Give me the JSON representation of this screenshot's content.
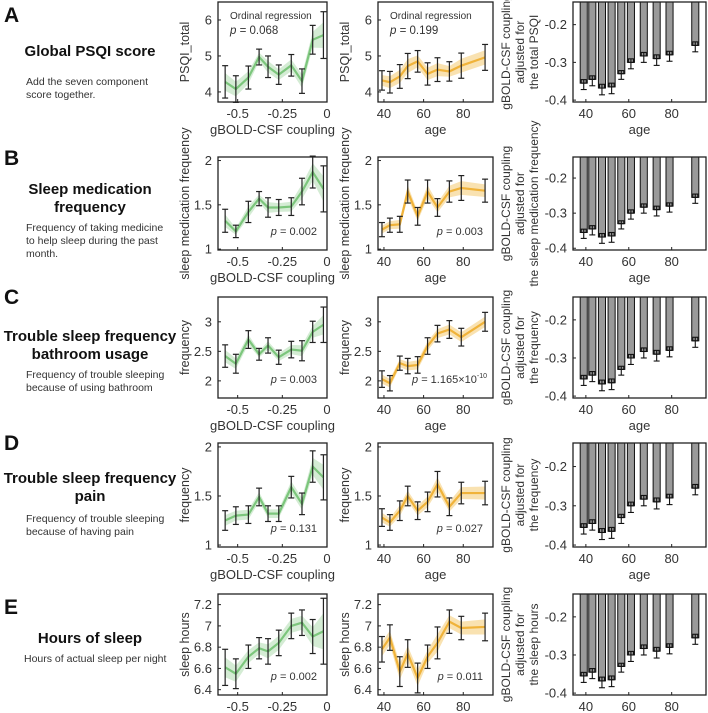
{
  "panels": [
    {
      "letter": "A",
      "title": "Global PSQI score",
      "description": "Add the seven component score together."
    },
    {
      "letter": "B",
      "title": "Sleep medication frequency",
      "description": "Frequency of taking medicine to help sleep during the past month."
    },
    {
      "letter": "C",
      "title": "Trouble sleep frequency bathroom usage",
      "description": "Frequency of trouble sleeping because of using bathroom"
    },
    {
      "letter": "D",
      "title": "Trouble sleep frequency pain",
      "description": "Frequency of trouble sleeping because of having pain"
    },
    {
      "letter": "E",
      "title": "Hours of sleep",
      "description": "Hours of actual sleep per night"
    }
  ],
  "colors": {
    "green": "#7cc67c",
    "green_band": "#cde9cd",
    "orange": "#f0b33a",
    "orange_band": "#f8dda3",
    "bar": "#9a9a9a"
  },
  "chart_data": [
    {
      "type": "line",
      "series": "green",
      "x": [
        -0.57,
        -0.51,
        -0.44,
        -0.38,
        -0.33,
        -0.27,
        -0.2,
        -0.14,
        -0.08,
        -0.02
      ],
      "y": [
        4.28,
        4.08,
        4.4,
        4.97,
        4.7,
        4.48,
        4.74,
        4.3,
        5.45,
        5.58
      ],
      "err": [
        0.45,
        0.37,
        0.32,
        0.22,
        0.3,
        0.27,
        0.3,
        0.34,
        0.4,
        0.65
      ],
      "xlim": [
        -0.61,
        0
      ],
      "ylim": [
        3.72,
        6.5
      ],
      "xticks": [
        -0.5,
        -0.25,
        0
      ],
      "yticks": [
        4,
        5,
        6
      ],
      "xlabel": "gBOLD-CSF coupling",
      "ylabel": "PSQI_total",
      "annotation": {
        "method": "Ordinal regression",
        "p_label": "p",
        "p_value": " = 0.068",
        "position": "top-left"
      }
    },
    {
      "type": "line",
      "series": "orange",
      "x": [
        39,
        43,
        48,
        52,
        57,
        62,
        67,
        73,
        79,
        91
      ],
      "y": [
        4.32,
        4.27,
        4.43,
        4.72,
        4.85,
        4.5,
        4.62,
        4.57,
        4.73,
        4.96
      ],
      "err": [
        0.27,
        0.3,
        0.33,
        0.35,
        0.3,
        0.31,
        0.33,
        0.27,
        0.35,
        0.36
      ],
      "xlim": [
        37,
        95
      ],
      "ylim": [
        3.72,
        6.5
      ],
      "xticks": [
        40,
        60,
        80
      ],
      "yticks": [
        4,
        5,
        6
      ],
      "xlabel": "age",
      "ylabel": "PSQI_total",
      "annotation": {
        "method": "Ordinal regression",
        "p_label": "p",
        "p_value": " = 0.199",
        "position": "top-left"
      }
    },
    {
      "type": "bar",
      "x": [
        39,
        43,
        47.5,
        52,
        56.5,
        61,
        67,
        73,
        79,
        91
      ],
      "y": [
        -0.355,
        -0.345,
        -0.368,
        -0.365,
        -0.33,
        -0.3,
        -0.283,
        -0.29,
        -0.28,
        -0.255
      ],
      "err": [
        0.017,
        0.017,
        0.018,
        0.018,
        0.015,
        0.017,
        0.017,
        0.018,
        0.017,
        0.017
      ],
      "xlim": [
        34,
        96
      ],
      "ylim": [
        -0.405,
        -0.14
      ],
      "xticks": [
        40,
        60,
        80
      ],
      "yticks": [
        -0.2,
        -0.3,
        -0.4
      ],
      "xlabel": "age",
      "ylabel": [
        "gBOLD-CSF coupling",
        "adjusted for",
        "the total PSQI"
      ]
    },
    {
      "type": "line",
      "series": "green",
      "x": [
        -0.57,
        -0.51,
        -0.44,
        -0.38,
        -0.33,
        -0.27,
        -0.2,
        -0.14,
        -0.08,
        -0.02
      ],
      "y": [
        1.32,
        1.2,
        1.42,
        1.57,
        1.47,
        1.47,
        1.48,
        1.65,
        1.87,
        1.68
      ],
      "err": [
        0.13,
        0.07,
        0.12,
        0.08,
        0.11,
        0.09,
        0.1,
        0.15,
        0.18,
        0.26
      ],
      "xlim": [
        -0.61,
        0
      ],
      "ylim": [
        0.99,
        2.04
      ],
      "xticks": [
        -0.5,
        -0.25,
        0
      ],
      "yticks": [
        1,
        1.5,
        2
      ],
      "xlabel": "gBOLD-CSF coupling",
      "ylabel": "sleep medication frequency",
      "annotation": {
        "p_label": "p",
        "p_value": " = 0.002",
        "position": "bottom-right"
      }
    },
    {
      "type": "line",
      "series": "orange",
      "x": [
        39,
        43,
        48,
        52,
        57,
        62,
        67,
        73,
        79,
        91
      ],
      "y": [
        1.22,
        1.27,
        1.28,
        1.65,
        1.37,
        1.65,
        1.47,
        1.65,
        1.69,
        1.66
      ],
      "err": [
        0.08,
        0.08,
        0.09,
        0.13,
        0.1,
        0.13,
        0.1,
        0.12,
        0.14,
        0.13
      ],
      "xlim": [
        37,
        95
      ],
      "ylim": [
        0.99,
        2.04
      ],
      "xticks": [
        40,
        60,
        80
      ],
      "yticks": [
        1,
        1.5,
        2
      ],
      "xlabel": "age",
      "ylabel": "sleep medication frequency",
      "annotation": {
        "p_label": "p",
        "p_value": " = 0.003",
        "position": "bottom-right"
      }
    },
    {
      "type": "bar",
      "x": [
        39,
        43,
        47.5,
        52,
        56.5,
        61,
        67,
        73,
        79,
        91
      ],
      "y": [
        -0.355,
        -0.345,
        -0.368,
        -0.365,
        -0.33,
        -0.3,
        -0.283,
        -0.29,
        -0.28,
        -0.255
      ],
      "err": [
        0.017,
        0.017,
        0.018,
        0.018,
        0.015,
        0.017,
        0.017,
        0.018,
        0.017,
        0.017
      ],
      "xlim": [
        34,
        96
      ],
      "ylim": [
        -0.405,
        -0.14
      ],
      "xticks": [
        40,
        60,
        80
      ],
      "yticks": [
        -0.2,
        -0.3,
        -0.4
      ],
      "xlabel": "age",
      "ylabel": [
        "gBOLD-CSF coupling",
        "adjusted for",
        "the sleep medication frequency"
      ]
    },
    {
      "type": "line",
      "series": "green",
      "x": [
        -0.57,
        -0.51,
        -0.44,
        -0.38,
        -0.33,
        -0.27,
        -0.2,
        -0.14,
        -0.08,
        -0.02
      ],
      "y": [
        2.42,
        2.29,
        2.7,
        2.45,
        2.6,
        2.4,
        2.53,
        2.51,
        2.83,
        2.95
      ],
      "err": [
        0.19,
        0.16,
        0.15,
        0.1,
        0.13,
        0.12,
        0.14,
        0.17,
        0.18,
        0.3
      ],
      "xlim": [
        -0.61,
        0
      ],
      "ylim": [
        1.71,
        3.42
      ],
      "xticks": [
        -0.5,
        -0.25,
        0
      ],
      "yticks": [
        2,
        2.5,
        3
      ],
      "xlabel": "gBOLD-CSF coupling",
      "ylabel": "frequency",
      "annotation": {
        "p_label": "p",
        "p_value": " = 0.003",
        "position": "bottom-right"
      }
    },
    {
      "type": "line",
      "series": "orange",
      "x": [
        39,
        43,
        48,
        52,
        57,
        62,
        67,
        73,
        79,
        91
      ],
      "y": [
        2.03,
        1.96,
        2.3,
        2.25,
        2.27,
        2.59,
        2.8,
        2.87,
        2.74,
        3.0
      ],
      "err": [
        0.14,
        0.13,
        0.12,
        0.13,
        0.14,
        0.14,
        0.14,
        0.15,
        0.15,
        0.16
      ],
      "xlim": [
        37,
        95
      ],
      "ylim": [
        1.71,
        3.42
      ],
      "xticks": [
        40,
        60,
        80
      ],
      "yticks": [
        2,
        2.5,
        3
      ],
      "xlabel": "age",
      "ylabel": "frequency",
      "annotation": {
        "p_label": "p",
        "p_value": " = 1.165×10",
        "p_exponent": "-10",
        "position": "bottom-right"
      }
    },
    {
      "type": "bar",
      "x": [
        39,
        43,
        47.5,
        52,
        56.5,
        61,
        67,
        73,
        79,
        91
      ],
      "y": [
        -0.355,
        -0.345,
        -0.368,
        -0.365,
        -0.33,
        -0.3,
        -0.283,
        -0.29,
        -0.28,
        -0.255
      ],
      "err": [
        0.017,
        0.017,
        0.018,
        0.018,
        0.015,
        0.017,
        0.017,
        0.018,
        0.017,
        0.017
      ],
      "xlim": [
        34,
        96
      ],
      "ylim": [
        -0.405,
        -0.14
      ],
      "xticks": [
        40,
        60,
        80
      ],
      "yticks": [
        -0.2,
        -0.3,
        -0.4
      ],
      "xlabel": "age",
      "ylabel": [
        "gBOLD-CSF coupling",
        "adjusted for",
        "the frequency"
      ]
    },
    {
      "type": "line",
      "series": "green",
      "x": [
        -0.57,
        -0.51,
        -0.44,
        -0.38,
        -0.33,
        -0.27,
        -0.2,
        -0.14,
        -0.08,
        -0.02
      ],
      "y": [
        1.25,
        1.3,
        1.31,
        1.49,
        1.32,
        1.32,
        1.59,
        1.42,
        1.8,
        1.69
      ],
      "err": [
        0.1,
        0.09,
        0.09,
        0.09,
        0.08,
        0.08,
        0.11,
        0.11,
        0.16,
        0.23
      ],
      "xlim": [
        -0.61,
        0
      ],
      "ylim": [
        0.98,
        2.04
      ],
      "xticks": [
        -0.5,
        -0.25,
        0
      ],
      "yticks": [
        1,
        1.5,
        2
      ],
      "xlabel": "gBOLD-CSF coupling",
      "ylabel": "frequency",
      "annotation": {
        "p_label": "p",
        "p_value": " = 0.131",
        "position": "bottom-right"
      }
    },
    {
      "type": "line",
      "series": "orange",
      "x": [
        39,
        43,
        48,
        52,
        57,
        62,
        67,
        73,
        79,
        91
      ],
      "y": [
        1.28,
        1.23,
        1.35,
        1.5,
        1.35,
        1.44,
        1.62,
        1.39,
        1.53,
        1.53
      ],
      "err": [
        0.09,
        0.08,
        0.1,
        0.1,
        0.09,
        0.1,
        0.13,
        0.09,
        0.11,
        0.12
      ],
      "xlim": [
        37,
        95
      ],
      "ylim": [
        0.98,
        2.04
      ],
      "xticks": [
        40,
        60,
        80
      ],
      "yticks": [
        1,
        1.5,
        2
      ],
      "xlabel": "age",
      "ylabel": "frequency",
      "annotation": {
        "p_label": "p",
        "p_value": " = 0.027",
        "position": "bottom-right"
      }
    },
    {
      "type": "bar",
      "x": [
        39,
        43,
        47.5,
        52,
        56.5,
        61,
        67,
        73,
        79,
        91
      ],
      "y": [
        -0.355,
        -0.345,
        -0.368,
        -0.365,
        -0.33,
        -0.3,
        -0.283,
        -0.29,
        -0.28,
        -0.255
      ],
      "err": [
        0.017,
        0.017,
        0.018,
        0.018,
        0.015,
        0.017,
        0.017,
        0.018,
        0.017,
        0.017
      ],
      "xlim": [
        34,
        96
      ],
      "ylim": [
        -0.405,
        -0.14
      ],
      "xticks": [
        40,
        60,
        80
      ],
      "yticks": [
        -0.2,
        -0.3,
        -0.4
      ],
      "xlabel": "age",
      "ylabel": [
        "gBOLD-CSF coupling",
        "adjusted for",
        "the frequency"
      ]
    },
    {
      "type": "line",
      "series": "green",
      "x": [
        -0.57,
        -0.51,
        -0.44,
        -0.38,
        -0.33,
        -0.27,
        -0.2,
        -0.14,
        -0.08,
        -0.02
      ],
      "y": [
        6.61,
        6.55,
        6.71,
        6.79,
        6.76,
        6.84,
        7.0,
        7.03,
        6.9,
        6.95
      ],
      "err": [
        0.17,
        0.14,
        0.11,
        0.1,
        0.12,
        0.12,
        0.12,
        0.12,
        0.16,
        0.31
      ],
      "xlim": [
        -0.61,
        0
      ],
      "ylim": [
        6.35,
        7.3
      ],
      "xticks": [
        -0.5,
        -0.25,
        0
      ],
      "yticks": [
        6.4,
        6.6,
        6.8,
        7,
        7.2
      ],
      "xlabel": "",
      "ylabel": "sleep hours",
      "annotation": {
        "p_label": "p",
        "p_value": " = 0.002",
        "position": "bottom-right"
      }
    },
    {
      "type": "line",
      "series": "orange",
      "x": [
        39,
        43,
        48,
        52,
        57,
        62,
        67,
        73,
        79,
        91
      ],
      "y": [
        6.78,
        6.89,
        6.57,
        6.74,
        6.51,
        6.71,
        6.84,
        7.04,
        6.98,
        6.99
      ],
      "err": [
        0.12,
        0.12,
        0.14,
        0.13,
        0.14,
        0.11,
        0.15,
        0.11,
        0.11,
        0.13
      ],
      "xlim": [
        37,
        95
      ],
      "ylim": [
        6.35,
        7.3
      ],
      "xticks": [
        40,
        60,
        80
      ],
      "yticks": [
        6.4,
        6.6,
        6.8,
        7,
        7.2
      ],
      "xlabel": "",
      "ylabel": "sleep hours",
      "annotation": {
        "p_label": "p",
        "p_value": " = 0.011",
        "position": "bottom-right"
      }
    },
    {
      "type": "bar",
      "x": [
        39,
        43,
        47.5,
        52,
        56.5,
        61,
        67,
        73,
        79,
        91
      ],
      "y": [
        -0.355,
        -0.345,
        -0.368,
        -0.365,
        -0.33,
        -0.3,
        -0.283,
        -0.29,
        -0.28,
        -0.255
      ],
      "err": [
        0.017,
        0.017,
        0.018,
        0.018,
        0.015,
        0.017,
        0.017,
        0.018,
        0.017,
        0.017
      ],
      "xlim": [
        34,
        96
      ],
      "ylim": [
        -0.405,
        -0.14
      ],
      "xticks": [
        40,
        60,
        80
      ],
      "yticks": [
        -0.2,
        -0.3,
        -0.4
      ],
      "xlabel": "",
      "ylabel": [
        "gBOLD-CSF coupling",
        "adjusted for",
        "the sleep hours"
      ]
    }
  ]
}
